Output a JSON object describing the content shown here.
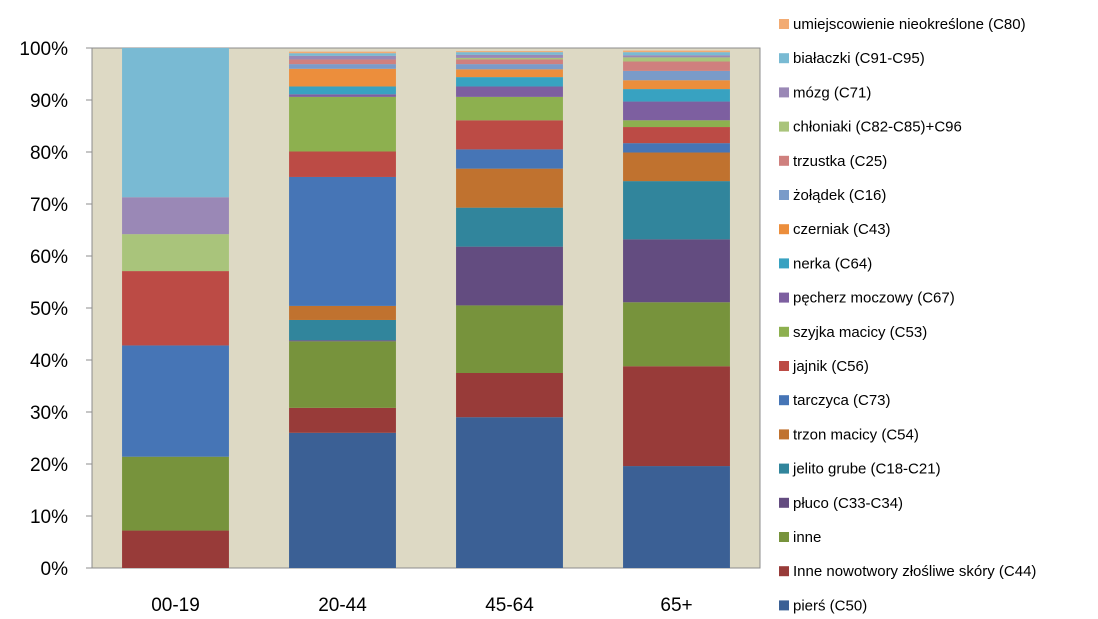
{
  "chart_data": {
    "type": "bar",
    "stacked": true,
    "percent": true,
    "title": "",
    "xlabel": "",
    "ylabel": "",
    "ylim": [
      0,
      100
    ],
    "yticks": [
      "0%",
      "10%",
      "20%",
      "30%",
      "40%",
      "50%",
      "60%",
      "70%",
      "80%",
      "90%",
      "100%"
    ],
    "grid": false,
    "legend_position": "right",
    "plot_background": "#ddd9c4",
    "categories": [
      "00-19",
      "20-44",
      "45-64",
      "65+"
    ],
    "series": [
      {
        "name": "pierś (C50)",
        "color": "#3b6095",
        "values": [
          0,
          26.0,
          29.0,
          19.6
        ]
      },
      {
        "name": "Inne nowotwory złośliwe skóry (C44)",
        "color": "#983b39",
        "values": [
          7.2,
          4.8,
          8.5,
          19.2
        ]
      },
      {
        "name": "inne",
        "color": "#77933c",
        "values": [
          14.2,
          12.8,
          13.0,
          12.3
        ]
      },
      {
        "name": "płuco (C33-C34)",
        "color": "#634c80",
        "values": [
          0,
          0.2,
          11.3,
          12.1
        ]
      },
      {
        "name": "jelito grube (C18-C21)",
        "color": "#31859c",
        "values": [
          0,
          3.9,
          7.5,
          11.2
        ]
      },
      {
        "name": "trzon macicy (C54)",
        "color": "#c0722f",
        "values": [
          0,
          2.7,
          7.5,
          5.5
        ]
      },
      {
        "name": "tarczyca (C73)",
        "color": "#4675b6",
        "values": [
          21.4,
          24.8,
          3.7,
          1.8
        ]
      },
      {
        "name": "jajnik (C56)",
        "color": "#bc4b45",
        "values": [
          14.3,
          4.9,
          5.6,
          3.1
        ]
      },
      {
        "name": "szyjka macicy (C53)",
        "color": "#8db04f",
        "values": [
          0,
          10.5,
          4.5,
          1.3
        ]
      },
      {
        "name": "pęcherz moczowy (C67)",
        "color": "#7d5fa0",
        "values": [
          0,
          0.5,
          2.0,
          3.6
        ]
      },
      {
        "name": "nerka (C64)",
        "color": "#38a2c1",
        "values": [
          0,
          1.5,
          1.8,
          2.4
        ]
      },
      {
        "name": "czerniak (C43)",
        "color": "#ec8e3c",
        "values": [
          0,
          3.4,
          1.5,
          1.7
        ]
      },
      {
        "name": "żołądek (C16)",
        "color": "#7a9bc9",
        "values": [
          0,
          0.9,
          1.0,
          1.8
        ]
      },
      {
        "name": "trzustka (C25)",
        "color": "#cf807e",
        "values": [
          0,
          0.9,
          0.9,
          1.8
        ]
      },
      {
        "name": "chłoniaki (C82-C85)+C96",
        "color": "#a9c47b",
        "values": [
          7.1,
          0,
          0.3,
          0.8
        ]
      },
      {
        "name": "mózg (C71)",
        "color": "#9a88b6",
        "values": [
          7.1,
          0.7,
          0.6,
          0.4
        ]
      },
      {
        "name": "białaczki (C91-C95)",
        "color": "#79bad3",
        "values": [
          28.7,
          0.5,
          0.5,
          0.6
        ]
      },
      {
        "name": "umiejscowienie nieokreślone (C80)",
        "color": "#f2ab73",
        "values": [
          0,
          0.3,
          0.2,
          0.3
        ]
      }
    ]
  }
}
